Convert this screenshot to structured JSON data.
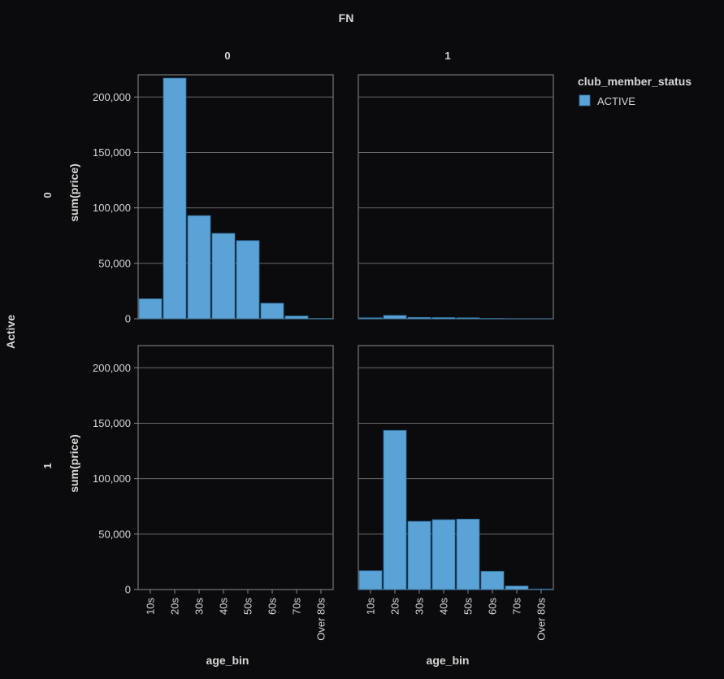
{
  "chart_data": {
    "type": "bar",
    "title": "FN",
    "row_field": "Active",
    "col_headers": [
      "0",
      "1"
    ],
    "row_headers": [
      "0",
      "1"
    ],
    "xlabel": "age_bin",
    "ylabel": "sum(price)",
    "categories": [
      "10s",
      "20s",
      "30s",
      "40s",
      "50s",
      "60s",
      "70s",
      "Over 80s"
    ],
    "ylim": [
      0,
      220000
    ],
    "yticks": [
      0,
      50000,
      100000,
      150000,
      200000
    ],
    "ytick_labels": [
      "0",
      "50,000",
      "100,000",
      "150,000",
      "200,000"
    ],
    "grid": true,
    "legend": {
      "title": "club_member_status",
      "position": "top-right",
      "items": [
        {
          "label": "ACTIVE",
          "color": "#5ba3d6"
        }
      ]
    },
    "bar_color": "#5ba3d6",
    "panels": [
      {
        "row": "0",
        "col": "0",
        "values": [
          18000,
          217000,
          93000,
          77000,
          70500,
          14000,
          2500,
          300
        ]
      },
      {
        "row": "0",
        "col": "1",
        "values": [
          900,
          3000,
          1200,
          1100,
          900,
          300,
          100,
          50
        ]
      },
      {
        "row": "1",
        "col": "0",
        "values": [
          0,
          0,
          0,
          0,
          0,
          0,
          0,
          0
        ]
      },
      {
        "row": "1",
        "col": "1",
        "values": [
          17000,
          143500,
          61500,
          63000,
          63500,
          16500,
          3200,
          500
        ]
      }
    ]
  }
}
